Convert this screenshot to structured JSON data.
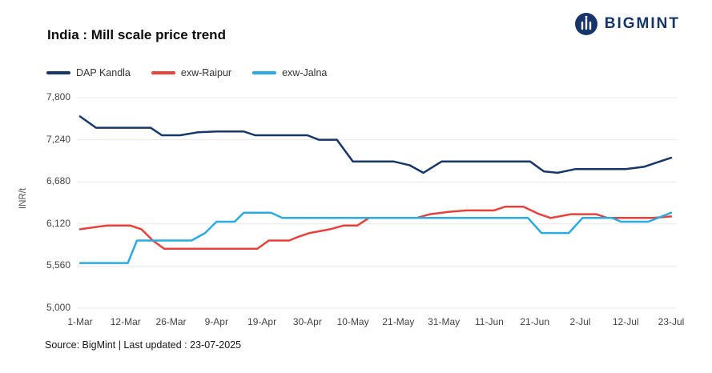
{
  "header": {
    "title": "India : Mill scale price trend",
    "brand": "BIGMINT"
  },
  "chart_data": {
    "type": "line",
    "title": "India : Mill scale price trend",
    "xlabel": "",
    "ylabel": "INR/t",
    "ylim": [
      5000,
      7800
    ],
    "yticks": [
      5000,
      5560,
      6120,
      6680,
      7240,
      7800
    ],
    "ytick_labels": [
      "5,000",
      "5,560",
      "6,120",
      "6,680",
      "7,240",
      "7,800"
    ],
    "x_tick_labels": [
      "1-Mar",
      "12-Mar",
      "26-Mar",
      "9-Apr",
      "19-Apr",
      "30-Apr",
      "10-May",
      "21-May",
      "31-May",
      "11-Jun",
      "21-Jun",
      "2-Jul",
      "12-Jul",
      "23-Jul"
    ],
    "grid": true,
    "legend_position": "top-left",
    "series": [
      {
        "name": "DAP Kandla",
        "color": "#17376b",
        "points": [
          [
            0,
            7550
          ],
          [
            0.35,
            7400
          ],
          [
            1.0,
            7400
          ],
          [
            1.55,
            7400
          ],
          [
            1.8,
            7300
          ],
          [
            2.2,
            7300
          ],
          [
            2.6,
            7340
          ],
          [
            3.0,
            7350
          ],
          [
            3.6,
            7350
          ],
          [
            3.85,
            7300
          ],
          [
            4.6,
            7300
          ],
          [
            5.0,
            7300
          ],
          [
            5.25,
            7240
          ],
          [
            5.65,
            7240
          ],
          [
            6.0,
            6950
          ],
          [
            6.9,
            6950
          ],
          [
            7.25,
            6900
          ],
          [
            7.55,
            6800
          ],
          [
            7.95,
            6950
          ],
          [
            9.3,
            6950
          ],
          [
            9.9,
            6950
          ],
          [
            10.2,
            6820
          ],
          [
            10.5,
            6800
          ],
          [
            10.9,
            6850
          ],
          [
            12.0,
            6850
          ],
          [
            12.4,
            6880
          ],
          [
            13,
            7000
          ]
        ]
      },
      {
        "name": "exw-Raipur",
        "color": "#e8413b",
        "points": [
          [
            0,
            6050
          ],
          [
            0.6,
            6100
          ],
          [
            1.1,
            6100
          ],
          [
            1.35,
            6050
          ],
          [
            1.6,
            5900
          ],
          [
            1.85,
            5790
          ],
          [
            3.9,
            5790
          ],
          [
            4.15,
            5900
          ],
          [
            4.6,
            5900
          ],
          [
            4.8,
            5950
          ],
          [
            5.05,
            6000
          ],
          [
            5.5,
            6050
          ],
          [
            5.8,
            6100
          ],
          [
            6.1,
            6100
          ],
          [
            6.35,
            6200
          ],
          [
            7.4,
            6200
          ],
          [
            7.7,
            6250
          ],
          [
            8.1,
            6280
          ],
          [
            8.5,
            6300
          ],
          [
            9.1,
            6300
          ],
          [
            9.35,
            6350
          ],
          [
            9.75,
            6350
          ],
          [
            10.1,
            6250
          ],
          [
            10.35,
            6200
          ],
          [
            10.8,
            6250
          ],
          [
            11.35,
            6250
          ],
          [
            11.6,
            6200
          ],
          [
            12.6,
            6200
          ],
          [
            13,
            6220
          ]
        ]
      },
      {
        "name": "exw-Jalna",
        "color": "#2aabe2",
        "points": [
          [
            0,
            5600
          ],
          [
            1.05,
            5600
          ],
          [
            1.25,
            5900
          ],
          [
            2.45,
            5900
          ],
          [
            2.75,
            6000
          ],
          [
            3.0,
            6150
          ],
          [
            3.4,
            6150
          ],
          [
            3.6,
            6270
          ],
          [
            4.2,
            6270
          ],
          [
            4.45,
            6200
          ],
          [
            9.85,
            6200
          ],
          [
            10.15,
            6000
          ],
          [
            10.75,
            6000
          ],
          [
            11.05,
            6200
          ],
          [
            11.7,
            6200
          ],
          [
            11.9,
            6150
          ],
          [
            12.5,
            6150
          ],
          [
            13,
            6270
          ]
        ]
      }
    ]
  },
  "footer": {
    "source": "Source: BigMint | Last updated : 23-07-2025"
  }
}
